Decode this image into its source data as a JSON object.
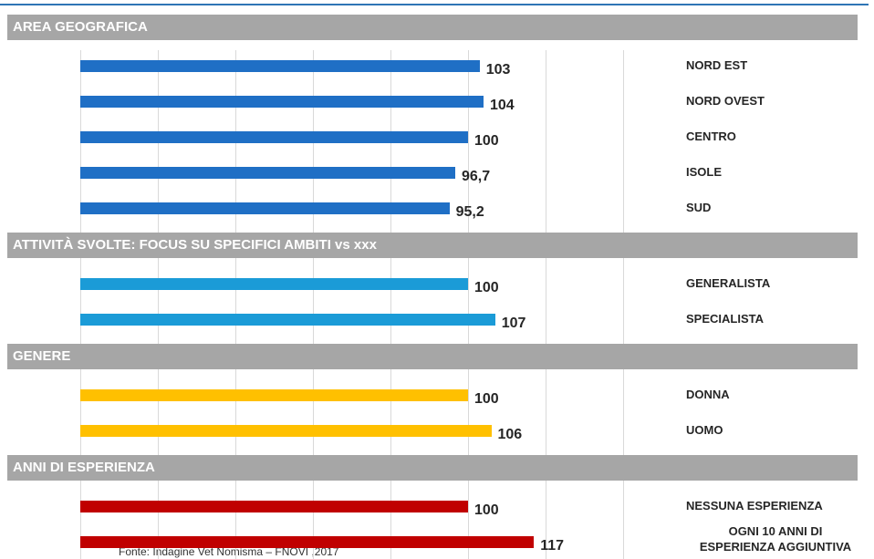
{
  "chart_data": {
    "type": "bar",
    "orientation": "horizontal",
    "xlim": [
      0,
      140
    ],
    "xticks": [
      0,
      20,
      40,
      60,
      80,
      100,
      120,
      140
    ],
    "grid": true,
    "sections": [
      {
        "title": "AREA GEOGRAFICA",
        "color": "#1f6fc5",
        "categories": [
          "NORD EST",
          "NORD OVEST",
          "CENTRO",
          "ISOLE",
          "SUD"
        ],
        "values": [
          103,
          104,
          100,
          96.7,
          95.2
        ],
        "value_labels": [
          "103",
          "104",
          "100",
          "96,7",
          "95,2"
        ]
      },
      {
        "title": "ATTIVITÀ SVOLTE: FOCUS SU SPECIFICI AMBITI vs xxx",
        "color": "#1b9bd7",
        "categories": [
          "GENERALISTA",
          "SPECIALISTA"
        ],
        "values": [
          100,
          107
        ]
      },
      {
        "title": "GENERE",
        "color": "#ffc000",
        "categories": [
          "DONNA",
          "UOMO"
        ],
        "values": [
          100,
          106
        ]
      },
      {
        "title": "ANNI DI ESPERIENZA",
        "color": "#c00000",
        "categories": [
          "NESSUNA ESPERIENZA",
          "OGNI 10 ANNI DI\nESPERIENZA AGGIUNTIVA"
        ],
        "values": [
          100,
          117
        ]
      }
    ],
    "source": "Fonte: Indagine Vet Nomisma – FNOVI ,2017"
  }
}
